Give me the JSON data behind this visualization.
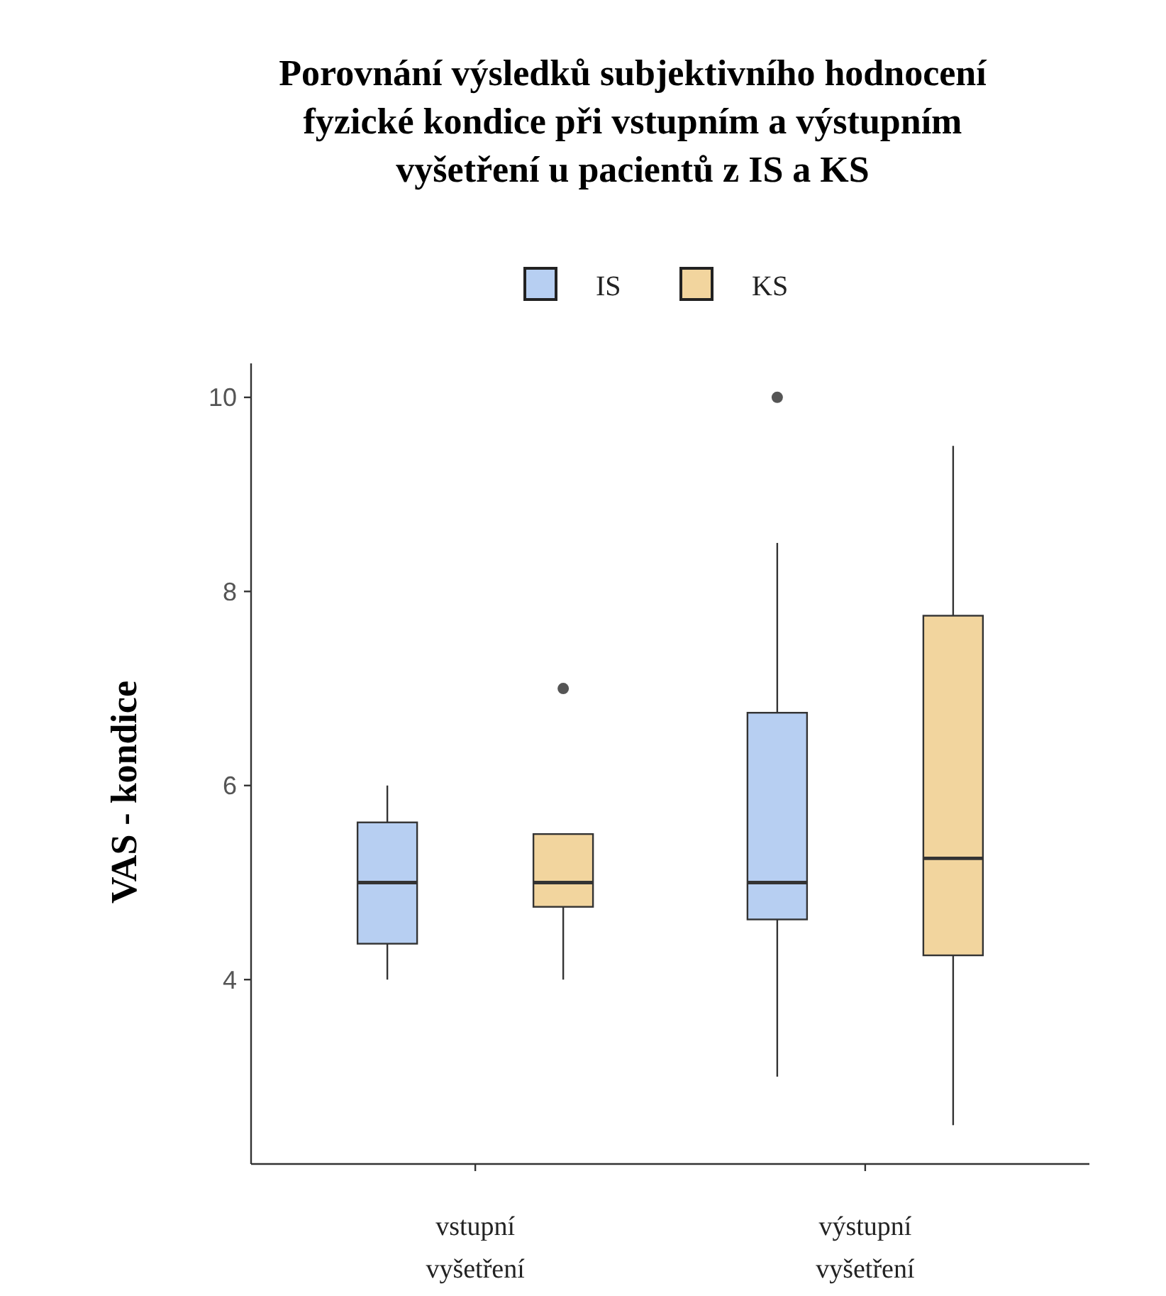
{
  "chart_data": {
    "type": "box",
    "title": "Porovnání výsledků subjektivního hodnocení fyzické kondice při vstupním a výstupním vyšetření u pacientů z IS a KS",
    "ylabel": "VAS - kondice",
    "categories": [
      "vstupní vyšetření",
      "výstupní vyšetření"
    ],
    "ylim": [
      2.1,
      10.35
    ],
    "yticks": [
      4,
      6,
      8,
      10
    ],
    "legend": "top",
    "grid": false,
    "series": [
      {
        "name": "IS",
        "color": "#b7cff2",
        "boxes": [
          {
            "low": 4,
            "q1": 4.37,
            "median": 5,
            "q3": 5.62,
            "high": 6
          },
          {
            "low": 3,
            "q1": 4.62,
            "median": 5,
            "q3": 6.75,
            "high": 8.5,
            "outliers": [
              10
            ]
          }
        ]
      },
      {
        "name": "KS",
        "color": "#f2d59e",
        "boxes": [
          {
            "low": 4,
            "q1": 4.75,
            "median": 5,
            "q3": 5.5,
            "high": 5.5,
            "outliers": [
              7
            ]
          },
          {
            "low": 2.5,
            "q1": 4.25,
            "median": 5.25,
            "q3": 7.75,
            "high": 9.5
          }
        ]
      }
    ]
  }
}
